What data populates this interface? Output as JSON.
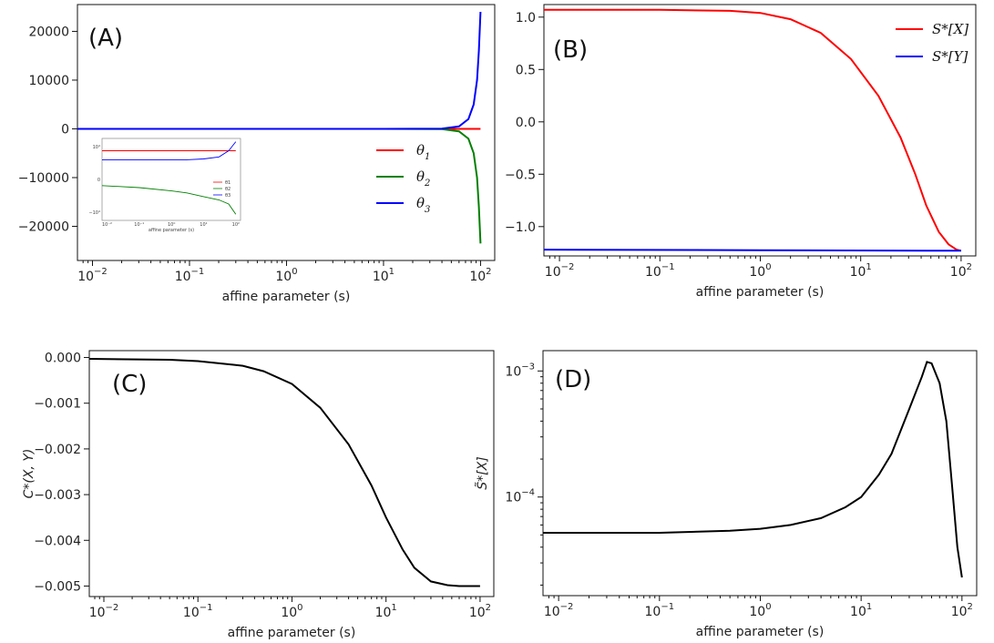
{
  "chart_data": [
    {
      "type": "line",
      "panel_label": "(A)",
      "xlabel": "affine parameter (s)",
      "ylabel": "",
      "xscale": "log",
      "xlim": [
        0.007,
        140
      ],
      "ylim": [
        -27000,
        25500
      ],
      "grid": false,
      "legend_position": "center-right",
      "xtick_values": [
        0.01,
        0.1,
        1,
        10,
        100
      ],
      "xtick_labels": [
        [
          "10",
          "−2"
        ],
        [
          "10",
          "−1"
        ],
        [
          "10",
          "0"
        ],
        [
          "10",
          "1"
        ],
        [
          "10",
          "2"
        ]
      ],
      "ytick_values": [
        20000,
        10000,
        0,
        -10000,
        -20000
      ],
      "ytick_labels": [
        "20000",
        "10000",
        "0",
        "−10000",
        "−20000"
      ],
      "series": [
        {
          "name": "θ1",
          "color": "#ff0000",
          "x": [
            0.007,
            0.1,
            1,
            10,
            40,
            60,
            75,
            85,
            92,
            96,
            100
          ],
          "y": [
            0,
            0,
            0,
            0,
            0,
            0,
            0,
            0,
            0,
            0,
            0
          ]
        },
        {
          "name": "θ2",
          "color": "#008000",
          "x": [
            0.007,
            0.1,
            1,
            10,
            40,
            60,
            75,
            85,
            92,
            96,
            100
          ],
          "y": [
            0,
            0,
            0,
            0,
            -50,
            -500,
            -2000,
            -5000,
            -10000,
            -16000,
            -23500
          ]
        },
        {
          "name": "θ3",
          "color": "#0000ff",
          "x": [
            0.007,
            0.1,
            1,
            10,
            40,
            60,
            75,
            85,
            92,
            96,
            100
          ],
          "y": [
            0,
            0,
            0,
            0,
            50,
            500,
            2000,
            5000,
            10000,
            16000,
            24000
          ]
        }
      ],
      "legend": [
        {
          "base": "θ",
          "sub": "1",
          "color": "#ff0000"
        },
        {
          "base": "θ",
          "sub": "2",
          "color": "#008000"
        },
        {
          "base": "θ",
          "sub": "3",
          "color": "#0000ff"
        }
      ],
      "inset": {
        "xlabel": "affine parameter (s)",
        "xtick_labels": [
          "10⁻²",
          "10⁻¹",
          "10⁰",
          "10¹",
          "10²"
        ],
        "ytick_labels": [
          "10⁴",
          "0",
          "−10⁴"
        ],
        "legend": [
          "θ1",
          "θ2",
          "θ3"
        ],
        "series": [
          {
            "name": "θ1",
            "color": "#ff0000",
            "x": [
              0.007,
              0.1,
              1,
              10,
              100
            ],
            "y": [
              0.7,
              0.7,
              0.7,
              0.7,
              0.7
            ]
          },
          {
            "name": "θ2",
            "color": "#008000",
            "x": [
              0.007,
              0.1,
              1,
              3,
              10,
              30,
              60,
              100
            ],
            "y": [
              -0.15,
              -0.2,
              -0.28,
              -0.33,
              -0.42,
              -0.5,
              -0.6,
              -0.85
            ]
          },
          {
            "name": "θ3",
            "color": "#0000ff",
            "x": [
              0.007,
              0.1,
              1,
              3,
              10,
              30,
              60,
              100
            ],
            "y": [
              0.48,
              0.48,
              0.48,
              0.48,
              0.5,
              0.55,
              0.7,
              0.92
            ]
          }
        ]
      }
    },
    {
      "type": "line",
      "panel_label": "(B)",
      "xlabel": "affine parameter (s)",
      "ylabel": "",
      "xscale": "log",
      "xlim": [
        0.007,
        140
      ],
      "ylim": [
        -1.28,
        1.12
      ],
      "grid": false,
      "legend_position": "top-right",
      "xtick_values": [
        0.01,
        0.1,
        1,
        10,
        100
      ],
      "xtick_labels": [
        [
          "10",
          "−2"
        ],
        [
          "10",
          "−1"
        ],
        [
          "10",
          "0"
        ],
        [
          "10",
          "1"
        ],
        [
          "10",
          "2"
        ]
      ],
      "ytick_values": [
        1.0,
        0.5,
        0.0,
        -0.5,
        -1.0
      ],
      "ytick_labels": [
        "1.0",
        "0.5",
        "0.0",
        "−0.5",
        "−1.0"
      ],
      "series": [
        {
          "name": "S*[X]",
          "color": "#ff0000",
          "x": [
            0.007,
            0.1,
            0.5,
            1,
            2,
            4,
            8,
            15,
            25,
            35,
            45,
            60,
            75,
            90,
            100
          ],
          "y": [
            1.07,
            1.07,
            1.06,
            1.04,
            0.98,
            0.85,
            0.6,
            0.25,
            -0.15,
            -0.5,
            -0.8,
            -1.05,
            -1.17,
            -1.22,
            -1.23
          ]
        },
        {
          "name": "S*[Y]",
          "color": "#0000ff",
          "x": [
            0.007,
            1,
            100
          ],
          "y": [
            -1.22,
            -1.225,
            -1.23
          ]
        }
      ],
      "legend": [
        {
          "text": "S*[X]",
          "color": "#ff0000"
        },
        {
          "text": "S*[Y]",
          "color": "#0000ff"
        }
      ]
    },
    {
      "type": "line",
      "panel_label": "(C)",
      "xlabel": "affine parameter (s)",
      "ylabel": "C*(X, Y)",
      "xscale": "log",
      "xlim": [
        0.007,
        140
      ],
      "ylim": [
        -0.00523,
        0.00015
      ],
      "grid": false,
      "xtick_values": [
        0.01,
        0.1,
        1,
        10,
        100
      ],
      "xtick_labels": [
        [
          "10",
          "−2"
        ],
        [
          "10",
          "−1"
        ],
        [
          "10",
          "0"
        ],
        [
          "10",
          "1"
        ],
        [
          "10",
          "2"
        ]
      ],
      "ytick_values": [
        0,
        -0.001,
        -0.002,
        -0.003,
        -0.004,
        -0.005
      ],
      "ytick_labels": [
        "0.000",
        "−0.001",
        "−0.002",
        "−0.003",
        "−0.004",
        "−0.005"
      ],
      "series": [
        {
          "name": "",
          "color": "#000000",
          "x": [
            0.007,
            0.05,
            0.1,
            0.3,
            0.5,
            1,
            2,
            4,
            7,
            10,
            15,
            20,
            30,
            45,
            60,
            100
          ],
          "y": [
            -3e-05,
            -5e-05,
            -8e-05,
            -0.00018,
            -0.0003,
            -0.00058,
            -0.0011,
            -0.0019,
            -0.0028,
            -0.0035,
            -0.0042,
            -0.0046,
            -0.0049,
            -0.00498,
            -0.005,
            -0.005
          ]
        }
      ]
    },
    {
      "type": "line",
      "panel_label": "(D)",
      "xlabel": "affine parameter (s)",
      "ylabel": "S̃*[X]",
      "xscale": "log",
      "yscale": "log",
      "xlim": [
        0.007,
        140
      ],
      "ylim": [
        1.65e-05,
        0.00145
      ],
      "grid": false,
      "xtick_values": [
        0.01,
        0.1,
        1,
        10,
        100
      ],
      "xtick_labels": [
        [
          "10",
          "−2"
        ],
        [
          "10",
          "−1"
        ],
        [
          "10",
          "0"
        ],
        [
          "10",
          "1"
        ],
        [
          "10",
          "2"
        ]
      ],
      "ytick_values": [
        0.001,
        0.0001
      ],
      "ytick_labels": [
        [
          "10",
          "−3"
        ],
        [
          "10",
          "−4"
        ]
      ],
      "series": [
        {
          "name": "",
          "color": "#000000",
          "x": [
            0.007,
            0.1,
            0.5,
            1,
            2,
            4,
            7,
            10,
            15,
            20,
            30,
            40,
            45,
            50,
            60,
            70,
            80,
            90,
            100
          ],
          "y": [
            5.2e-05,
            5.2e-05,
            5.4e-05,
            5.6e-05,
            6e-05,
            6.8e-05,
            8.3e-05,
            0.0001,
            0.00015,
            0.00022,
            0.0005,
            0.0009,
            0.00118,
            0.00115,
            0.0008,
            0.0004,
            0.00012,
            4e-05,
            2.3e-05
          ]
        }
      ]
    }
  ]
}
